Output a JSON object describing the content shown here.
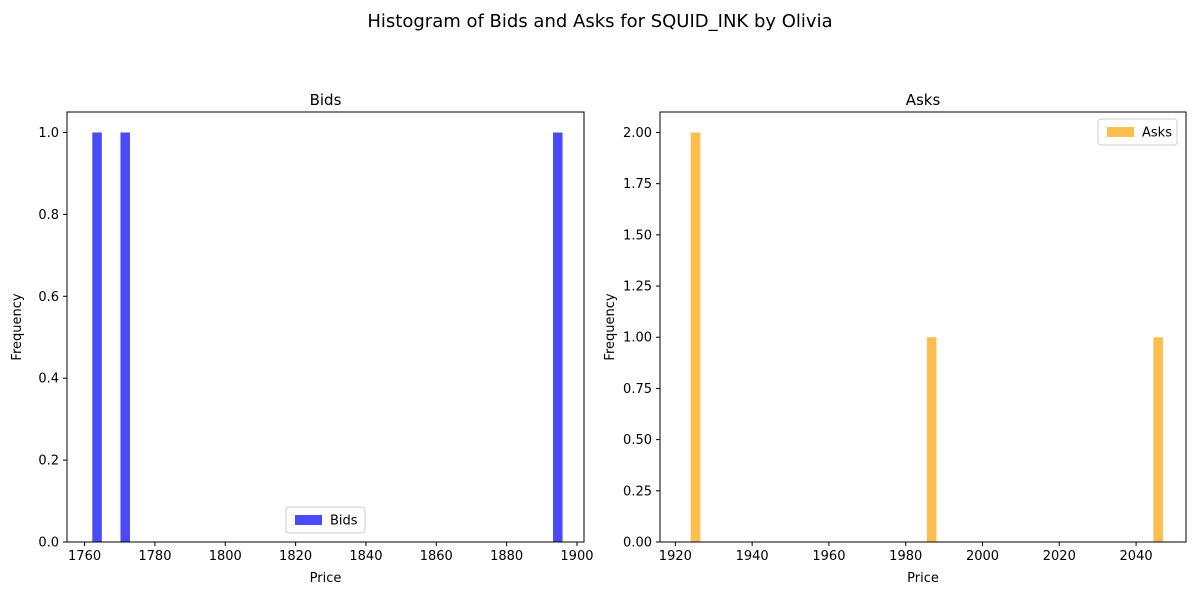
{
  "figure": {
    "suptitle": "Histogram of Bids and Asks for SQUID_INK by Olivia"
  },
  "chart_data": [
    {
      "type": "bar",
      "title": "Bids",
      "xlabel": "Price",
      "ylabel": "Frequency",
      "xlim": [
        1755,
        1902
      ],
      "ylim": [
        0,
        1.05
      ],
      "xticks": [
        1760,
        1780,
        1800,
        1820,
        1840,
        1860,
        1880,
        1900
      ],
      "xtick_labels": [
        "1760",
        "1780",
        "1800",
        "1820",
        "1840",
        "1860",
        "1880",
        "1900"
      ],
      "yticks": [
        0,
        0.2,
        0.4,
        0.6,
        0.8,
        1.0
      ],
      "ytick_labels": [
        "0.0",
        "0.2",
        "0.4",
        "0.6",
        "0.8",
        "1.0"
      ],
      "series": [
        {
          "name": "Bids",
          "color": "#4a4af7",
          "bins": [
            {
              "start": 1762.2,
              "end": 1764.9,
              "count": 1
            },
            {
              "start": 1770.2,
              "end": 1772.9,
              "count": 1
            },
            {
              "start": 1893.2,
              "end": 1895.9,
              "count": 1
            }
          ]
        }
      ],
      "legend": {
        "position": "lower center",
        "entries": [
          "Bids"
        ]
      },
      "grid": false
    },
    {
      "type": "bar",
      "title": "Asks",
      "xlabel": "Price",
      "ylabel": "Frequency",
      "xlim": [
        1916,
        2053
      ],
      "ylim": [
        0,
        2.1
      ],
      "xticks": [
        1920,
        1940,
        1960,
        1980,
        2000,
        2020,
        2040
      ],
      "xtick_labels": [
        "1920",
        "1940",
        "1960",
        "1980",
        "2000",
        "2020",
        "2040"
      ],
      "yticks": [
        0,
        0.25,
        0.5,
        0.75,
        1.0,
        1.25,
        1.5,
        1.75,
        2.0
      ],
      "ytick_labels": [
        "0.00",
        "0.25",
        "0.50",
        "0.75",
        "1.00",
        "1.25",
        "1.50",
        "1.75",
        "2.00"
      ],
      "series": [
        {
          "name": "Asks",
          "color": "#fcbe4e",
          "bins": [
            {
              "start": 1924.0,
              "end": 1926.5,
              "count": 2
            },
            {
              "start": 1985.5,
              "end": 1988.0,
              "count": 1
            },
            {
              "start": 2044.5,
              "end": 2047.0,
              "count": 1
            }
          ]
        }
      ],
      "legend": {
        "position": "upper right",
        "entries": [
          "Asks"
        ]
      },
      "grid": false
    }
  ]
}
